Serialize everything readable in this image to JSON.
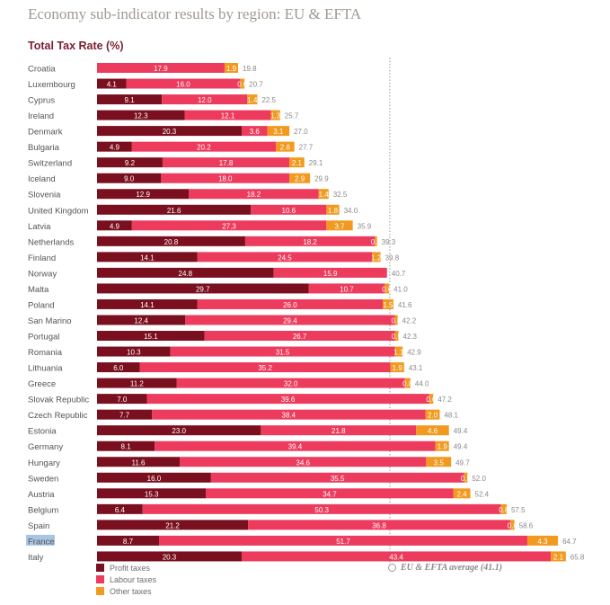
{
  "page": {
    "title": "Economy sub-indicator results by region: EU & EFTA"
  },
  "chart_data": {
    "type": "bar",
    "orientation": "horizontal",
    "stacked": true,
    "title": "Total Tax Rate (%)",
    "categories": [
      "Croatia",
      "Luxembourg",
      "Cyprus",
      "Ireland",
      "Denmark",
      "Bulgaria",
      "Switzerland",
      "Iceland",
      "Slovenia",
      "United Kingdom",
      "Latvia",
      "Netherlands",
      "Finland",
      "Norway",
      "Malta",
      "Poland",
      "San Marino",
      "Portugal",
      "Romania",
      "Lithuania",
      "Greece",
      "Slovak Republic",
      "Czech Republic",
      "Estonia",
      "Germany",
      "Hungary",
      "Sweden",
      "Austria",
      "Belgium",
      "Spain",
      "France",
      "Italy"
    ],
    "highlighted_category": "France",
    "series": [
      {
        "name": "Profit taxes",
        "color": "#7a0f1f",
        "values": [
          0,
          4.1,
          9.1,
          12.3,
          20.3,
          4.9,
          9.2,
          9.0,
          12.9,
          21.6,
          4.9,
          20.8,
          14.1,
          24.8,
          29.7,
          14.1,
          12.4,
          15.1,
          10.3,
          6.0,
          11.2,
          7.0,
          7.7,
          23.0,
          8.1,
          11.6,
          16.0,
          15.3,
          6.4,
          21.2,
          8.7,
          20.3
        ]
      },
      {
        "name": "Labour taxes",
        "color": "#ed3b5d",
        "values": [
          17.9,
          16.0,
          12.0,
          12.1,
          3.6,
          20.2,
          17.8,
          18.0,
          18.2,
          10.6,
          27.3,
          18.2,
          24.5,
          15.9,
          10.7,
          26.0,
          29.4,
          26.7,
          31.5,
          35.2,
          32.0,
          39.6,
          38.4,
          21.8,
          39.4,
          34.6,
          35.5,
          34.7,
          50.3,
          36.8,
          51.7,
          43.4
        ]
      },
      {
        "name": "Other taxes",
        "color": "#f29a1f",
        "values": [
          1.9,
          0.6,
          1.4,
          1.3,
          3.1,
          2.6,
          2.1,
          2.9,
          1.4,
          1.8,
          3.7,
          0.3,
          1.2,
          0,
          0.6,
          1.5,
          0.4,
          0.5,
          1.1,
          1.9,
          0.8,
          0.6,
          2.0,
          4.6,
          1.9,
          3.5,
          0.5,
          2.4,
          0.8,
          0.6,
          4.3,
          2.1
        ]
      }
    ],
    "totals": [
      19.8,
      20.7,
      22.5,
      25.7,
      27.0,
      27.7,
      29.1,
      29.9,
      32.5,
      34.0,
      35.9,
      39.3,
      39.8,
      40.7,
      41.0,
      41.6,
      42.2,
      42.3,
      42.9,
      43.1,
      44.0,
      47.2,
      48.1,
      49.4,
      49.4,
      49.7,
      52.0,
      52.4,
      57.5,
      58.6,
      64.7,
      65.8
    ],
    "average": {
      "value": 41.1,
      "label": "EU & EFTA average (41.1)"
    },
    "xlim": [
      0,
      70
    ],
    "legend_position": "bottom-left"
  }
}
